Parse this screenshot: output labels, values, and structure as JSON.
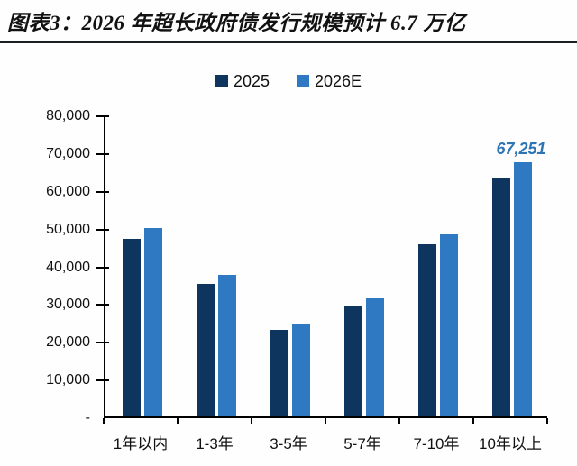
{
  "header": {
    "title": "图表3：2026 年超长政府债发行规模预计 6.7 万亿"
  },
  "chart_data": {
    "type": "bar",
    "title": "图表3：2026 年超长政府债发行规模预计 6.7 万亿",
    "categories": [
      "1年以内",
      "1-3年",
      "3-5年",
      "5-7年",
      "7-10年",
      "10年以上"
    ],
    "series": [
      {
        "name": "2025",
        "color": "#0e355e",
        "values": [
          47000,
          35200,
          23000,
          29300,
          45500,
          63300
        ]
      },
      {
        "name": "2026E",
        "color": "#2e79c2",
        "values": [
          50000,
          37600,
          24600,
          31200,
          48300,
          67251
        ]
      }
    ],
    "xlabel": "",
    "ylabel": "",
    "ylim": [
      0,
      80000
    ],
    "yticks": [
      {
        "value": 80000,
        "label": "80,000"
      },
      {
        "value": 70000,
        "label": "70,000"
      },
      {
        "value": 60000,
        "label": "60,000"
      },
      {
        "value": 50000,
        "label": "50,000"
      },
      {
        "value": 40000,
        "label": "40,000"
      },
      {
        "value": 30000,
        "label": "30,000"
      },
      {
        "value": 20000,
        "label": "20,000"
      },
      {
        "value": 10000,
        "label": "10,000"
      },
      {
        "value": 0,
        "label": "-"
      }
    ],
    "grid": false,
    "legend_position": "top-center",
    "annotations": [
      {
        "series": 1,
        "index": 5,
        "text": "67,251",
        "color": "#2e75b6"
      }
    ]
  }
}
